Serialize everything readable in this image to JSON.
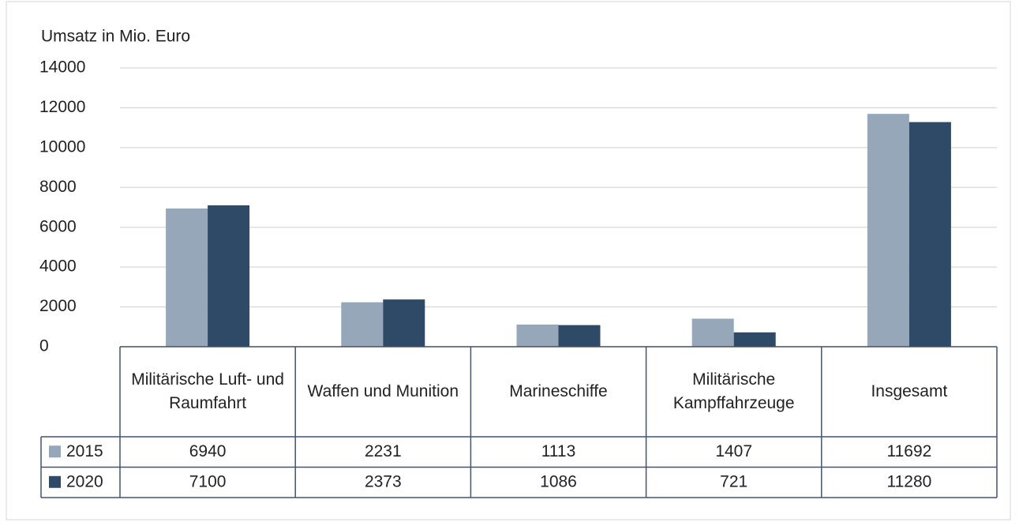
{
  "chart_data": {
    "type": "bar",
    "y_label": "Umsatz in Mio. Euro",
    "categories": [
      "Militärische Luft- und Raumfahrt",
      "Waffen und Munition",
      "Marineschiffe",
      "Militärische Kampffahrzeuge",
      "Insgesamt"
    ],
    "series": [
      {
        "name": "2015",
        "color": "#95a7b9",
        "values": [
          6940,
          2231,
          1113,
          1407,
          11692
        ]
      },
      {
        "name": "2020",
        "color": "#2e4a66",
        "values": [
          7100,
          2373,
          1086,
          721,
          11280
        ]
      }
    ],
    "ylim": [
      0,
      14000
    ],
    "yticks": [
      0,
      2000,
      4000,
      6000,
      8000,
      10000,
      12000,
      14000
    ],
    "grid": true,
    "data_table": true
  }
}
